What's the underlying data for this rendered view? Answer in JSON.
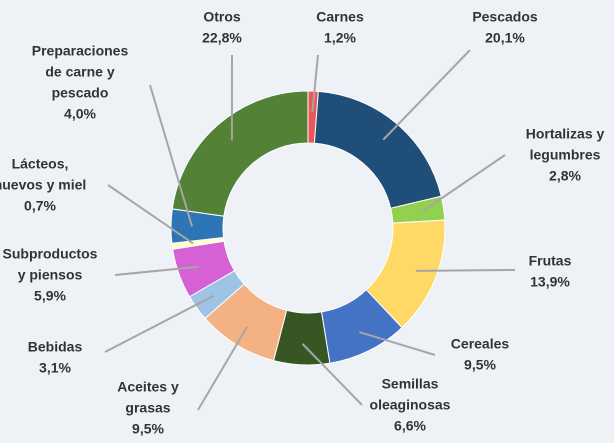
{
  "chart_data": {
    "type": "donut",
    "categories": [
      [
        "Carnes"
      ],
      [
        "Pescados"
      ],
      [
        "Hortalizas y",
        "legumbres"
      ],
      [
        "Frutas"
      ],
      [
        "Cereales"
      ],
      [
        "Semillas",
        "oleaginosas"
      ],
      [
        "Aceites y",
        "grasas"
      ],
      [
        "Bebidas"
      ],
      [
        "Subproductos",
        "y piensos"
      ],
      [
        "Lácteos,",
        "huevos y miel"
      ],
      [
        "Preparaciones",
        "de carne y",
        "pescado"
      ],
      [
        "Otros"
      ]
    ],
    "values": [
      1.2,
      20.1,
      2.8,
      13.9,
      9.5,
      6.6,
      9.5,
      3.1,
      5.9,
      0.7,
      4.0,
      22.8
    ],
    "value_labels": [
      "1,2%",
      "20,1%",
      "2,8%",
      "13,9%",
      "9,5%",
      "6,6%",
      "9,5%",
      "3,1%",
      "5,9%",
      "0,7%",
      "4,0%",
      "22,8%"
    ],
    "colors": [
      "#e8585a",
      "#1f4e79",
      "#92d050",
      "#ffd966",
      "#4472c4",
      "#375623",
      "#f4b183",
      "#9dc3e6",
      "#d660d6",
      "#ffffcc",
      "#2e75b6",
      "#538135"
    ]
  }
}
